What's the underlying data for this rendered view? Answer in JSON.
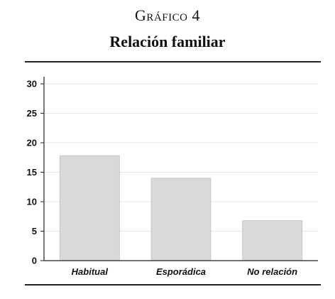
{
  "figure": {
    "number": "Gráfico 4",
    "title": "Relación familiar"
  },
  "colors": {
    "bar_fill": "#d9d9d9",
    "bar_stroke": "#c8c8c8",
    "grid": "#e6e6e6",
    "axis": "#222222"
  },
  "chart_data": {
    "type": "bar",
    "categories": [
      "Habitual",
      "Esporádica",
      "No relación"
    ],
    "values": [
      17.8,
      14,
      6.8
    ],
    "ylim": [
      0,
      30
    ],
    "yticks": [
      0,
      5,
      10,
      15,
      20,
      25,
      30
    ],
    "grid": true,
    "xlabel": "",
    "ylabel": ""
  }
}
